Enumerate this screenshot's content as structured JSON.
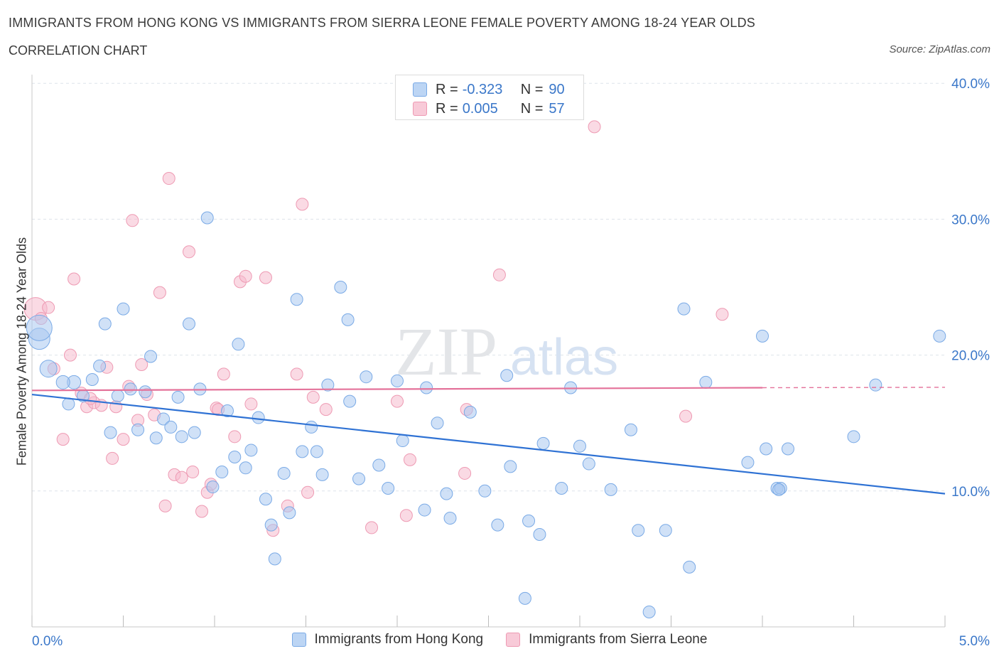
{
  "header": {
    "title": "IMMIGRANTS FROM HONG KONG VS IMMIGRANTS FROM SIERRA LEONE FEMALE POVERTY AMONG 18-24 YEAR OLDS",
    "subtitle": "CORRELATION CHART",
    "source": "Source: ZipAtlas.com"
  },
  "legend": {
    "rows": [
      {
        "r_label": "R =",
        "r_value": "-0.323",
        "n_label": "N =",
        "n_value": "90"
      },
      {
        "r_label": "R =",
        "r_value": "0.005",
        "n_label": "N =",
        "n_value": "57"
      }
    ]
  },
  "colors": {
    "blue_fill": "#a9c8f0",
    "blue_stroke": "#7aaae6",
    "blue_line": "#2f72d4",
    "pink_fill": "#f6bccd",
    "pink_stroke": "#ee9ab3",
    "pink_line": "#e4729a",
    "tick_text": "#3a77c9",
    "grid": "#dde3ea"
  },
  "watermark": {
    "zip": "ZIP",
    "atlas": "atlas"
  },
  "chart_data": {
    "type": "scatter",
    "title": "IMMIGRANTS FROM HONG KONG VS IMMIGRANTS FROM SIERRA LEONE FEMALE POVERTY AMONG 18-24 YEAR OLDS",
    "xlabel": "",
    "ylabel": "Female Poverty Among 18-24 Year Olds",
    "xlim": [
      0,
      5
    ],
    "ylim": [
      0,
      40
    ],
    "x_tick_labels": [
      "0.0%",
      "5.0%"
    ],
    "y_ticks": [
      10,
      20,
      30,
      40
    ],
    "y_tick_labels": [
      "10.0%",
      "20.0%",
      "30.0%",
      "40.0%"
    ],
    "grid": true,
    "legend_position": "top-center",
    "series": [
      {
        "name": "Immigrants from Hong Kong",
        "color": "#a9c8f0",
        "trend": {
          "x": [
            0,
            5
          ],
          "y": [
            17.1,
            9.8
          ]
        },
        "points": [
          [
            0.04,
            21.2
          ],
          [
            0.04,
            22.0
          ],
          [
            0.09,
            19.0
          ],
          [
            0.23,
            18.0
          ],
          [
            0.17,
            18.0
          ],
          [
            0.2,
            16.4
          ],
          [
            0.28,
            17.0
          ],
          [
            0.33,
            18.2
          ],
          [
            0.37,
            19.2
          ],
          [
            0.4,
            22.3
          ],
          [
            0.43,
            14.3
          ],
          [
            0.47,
            17.0
          ],
          [
            0.5,
            23.4
          ],
          [
            0.54,
            17.5
          ],
          [
            0.58,
            14.5
          ],
          [
            0.62,
            17.3
          ],
          [
            0.65,
            19.9
          ],
          [
            0.68,
            13.9
          ],
          [
            0.72,
            15.3
          ],
          [
            0.76,
            14.7
          ],
          [
            0.8,
            16.9
          ],
          [
            0.82,
            14.0
          ],
          [
            0.86,
            22.3
          ],
          [
            0.89,
            14.3
          ],
          [
            0.92,
            17.5
          ],
          [
            0.96,
            30.1
          ],
          [
            0.99,
            10.3
          ],
          [
            1.04,
            11.4
          ],
          [
            1.07,
            15.9
          ],
          [
            1.11,
            12.5
          ],
          [
            1.13,
            20.8
          ],
          [
            1.17,
            11.7
          ],
          [
            1.2,
            13.0
          ],
          [
            1.24,
            15.4
          ],
          [
            1.28,
            9.4
          ],
          [
            1.31,
            7.5
          ],
          [
            1.33,
            5.0
          ],
          [
            1.38,
            11.3
          ],
          [
            1.41,
            8.4
          ],
          [
            1.45,
            24.1
          ],
          [
            1.48,
            12.9
          ],
          [
            1.53,
            14.7
          ],
          [
            1.56,
            12.9
          ],
          [
            1.59,
            11.2
          ],
          [
            1.62,
            17.8
          ],
          [
            1.69,
            25.0
          ],
          [
            1.73,
            22.6
          ],
          [
            1.74,
            16.6
          ],
          [
            1.79,
            10.9
          ],
          [
            1.83,
            18.4
          ],
          [
            1.9,
            11.9
          ],
          [
            1.95,
            10.2
          ],
          [
            2.0,
            18.1
          ],
          [
            2.03,
            13.7
          ],
          [
            2.15,
            8.6
          ],
          [
            2.16,
            17.6
          ],
          [
            2.22,
            15.0
          ],
          [
            2.27,
            9.8
          ],
          [
            2.29,
            8.0
          ],
          [
            2.4,
            15.8
          ],
          [
            2.48,
            10.0
          ],
          [
            2.55,
            7.5
          ],
          [
            2.6,
            18.5
          ],
          [
            2.62,
            11.8
          ],
          [
            2.7,
            2.1
          ],
          [
            2.72,
            7.8
          ],
          [
            2.78,
            6.8
          ],
          [
            2.8,
            13.5
          ],
          [
            2.9,
            10.2
          ],
          [
            2.95,
            17.6
          ],
          [
            3.0,
            13.3
          ],
          [
            3.05,
            12.0
          ],
          [
            3.17,
            10.1
          ],
          [
            3.28,
            14.5
          ],
          [
            3.32,
            7.1
          ],
          [
            3.38,
            1.1
          ],
          [
            3.47,
            7.1
          ],
          [
            3.57,
            23.4
          ],
          [
            3.6,
            4.4
          ],
          [
            3.69,
            18.0
          ],
          [
            3.92,
            12.1
          ],
          [
            4.0,
            21.4
          ],
          [
            4.08,
            10.2
          ],
          [
            4.1,
            10.2
          ],
          [
            4.14,
            13.1
          ],
          [
            4.5,
            14.0
          ],
          [
            4.62,
            17.8
          ],
          [
            4.97,
            21.4
          ],
          [
            4.09,
            10.1
          ],
          [
            4.02,
            13.1
          ]
        ]
      },
      {
        "name": "Immigrants from Sierra Leone",
        "color": "#f6bccd",
        "trend": {
          "x": [
            0,
            4.0
          ],
          "y": [
            17.4,
            17.6
          ]
        },
        "points": [
          [
            0.02,
            23.4
          ],
          [
            0.05,
            22.7
          ],
          [
            0.09,
            23.5
          ],
          [
            0.12,
            19.0
          ],
          [
            0.17,
            13.8
          ],
          [
            0.21,
            20.0
          ],
          [
            0.23,
            25.6
          ],
          [
            0.27,
            17.2
          ],
          [
            0.3,
            16.2
          ],
          [
            0.34,
            16.5
          ],
          [
            0.38,
            16.3
          ],
          [
            0.41,
            19.1
          ],
          [
            0.44,
            12.4
          ],
          [
            0.46,
            16.2
          ],
          [
            0.5,
            13.8
          ],
          [
            0.53,
            17.7
          ],
          [
            0.55,
            29.9
          ],
          [
            0.58,
            15.2
          ],
          [
            0.6,
            19.3
          ],
          [
            0.63,
            17.1
          ],
          [
            0.67,
            15.6
          ],
          [
            0.7,
            24.6
          ],
          [
            0.73,
            8.9
          ],
          [
            0.75,
            33.0
          ],
          [
            0.78,
            11.2
          ],
          [
            0.82,
            11.0
          ],
          [
            0.86,
            27.6
          ],
          [
            0.88,
            11.4
          ],
          [
            0.93,
            8.5
          ],
          [
            0.96,
            9.9
          ],
          [
            0.98,
            10.5
          ],
          [
            1.01,
            16.1
          ],
          [
            1.05,
            18.6
          ],
          [
            1.11,
            14.0
          ],
          [
            1.14,
            25.4
          ],
          [
            1.17,
            25.8
          ],
          [
            1.2,
            16.4
          ],
          [
            1.28,
            25.7
          ],
          [
            1.32,
            7.1
          ],
          [
            1.4,
            8.9
          ],
          [
            1.45,
            18.6
          ],
          [
            1.48,
            31.1
          ],
          [
            1.51,
            9.9
          ],
          [
            1.54,
            16.9
          ],
          [
            1.61,
            16.0
          ],
          [
            1.86,
            7.3
          ],
          [
            2.0,
            16.6
          ],
          [
            2.05,
            8.2
          ],
          [
            2.07,
            12.3
          ],
          [
            2.37,
            11.3
          ],
          [
            2.38,
            16.0
          ],
          [
            2.56,
            25.9
          ],
          [
            3.08,
            36.8
          ],
          [
            3.58,
            15.5
          ],
          [
            3.78,
            23.0
          ],
          [
            1.02,
            16.0
          ],
          [
            0.32,
            16.8
          ]
        ]
      }
    ]
  },
  "bottom_legend": {
    "items": [
      {
        "label": "Immigrants from Hong Kong"
      },
      {
        "label": "Immigrants from Sierra Leone"
      }
    ]
  }
}
